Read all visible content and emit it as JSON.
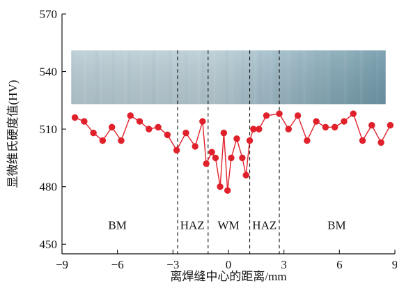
{
  "chart_data": {
    "type": "line",
    "title": "",
    "xlabel": "离焊缝中心的距离/mm",
    "ylabel": "显微维氏硬度值(HV)",
    "xlim": [
      -9,
      9
    ],
    "ylim": [
      445,
      570
    ],
    "x_ticks": [
      -9,
      -6,
      -3,
      0,
      3,
      6,
      9
    ],
    "x_tick_labels": [
      "−9",
      "−6",
      "−3",
      "0",
      "3",
      "6",
      "9"
    ],
    "y_ticks": [
      450,
      480,
      510,
      540,
      570
    ],
    "y_tick_labels": [
      "450",
      "480",
      "510",
      "540",
      "570"
    ],
    "grid": false,
    "legend": "none",
    "series": [
      {
        "color": "#e0202a",
        "marker": "circle",
        "x": [
          -8.3,
          -7.8,
          -7.3,
          -6.8,
          -6.3,
          -5.8,
          -5.3,
          -4.8,
          -4.3,
          -3.8,
          -3.3,
          -2.8,
          -2.3,
          -1.8,
          -1.4,
          -1.2,
          -0.9,
          -0.7,
          -0.45,
          -0.25,
          -0.05,
          0.15,
          0.45,
          0.75,
          0.95,
          1.15,
          1.35,
          1.65,
          2.05,
          2.75,
          3.25,
          3.75,
          4.25,
          4.75,
          5.25,
          5.75,
          6.25,
          6.75,
          7.25,
          7.75,
          8.25,
          8.75
        ],
        "y": [
          516,
          514,
          508,
          504,
          511,
          504,
          517,
          514,
          510,
          511,
          507,
          499,
          508,
          501,
          514,
          492,
          498,
          495,
          480,
          508,
          478,
          495,
          505,
          495,
          486,
          504,
          510,
          510,
          517,
          518,
          510,
          517,
          504,
          514,
          511,
          511,
          514,
          518,
          504,
          512,
          503,
          512
        ]
      }
    ],
    "zone_boundaries_x": [
      -2.75,
      -1.1,
      1.15,
      2.75
    ],
    "zone_labels": [
      {
        "text": "BM",
        "x": -6.0,
        "y": 460
      },
      {
        "text": "HAZ",
        "x": -1.95,
        "y": 460
      },
      {
        "text": "WM",
        "x": 0.0,
        "y": 460
      },
      {
        "text": "HAZ",
        "x": 1.95,
        "y": 460
      },
      {
        "text": "BM",
        "x": 5.85,
        "y": 460
      }
    ],
    "micrograph_band": {
      "x_range": [
        -8.5,
        8.5
      ],
      "y_range": [
        523,
        551
      ],
      "color_left": "#b8ccd3",
      "color_mid": "#a5bfcb",
      "color_right": "#6f98a8"
    }
  }
}
